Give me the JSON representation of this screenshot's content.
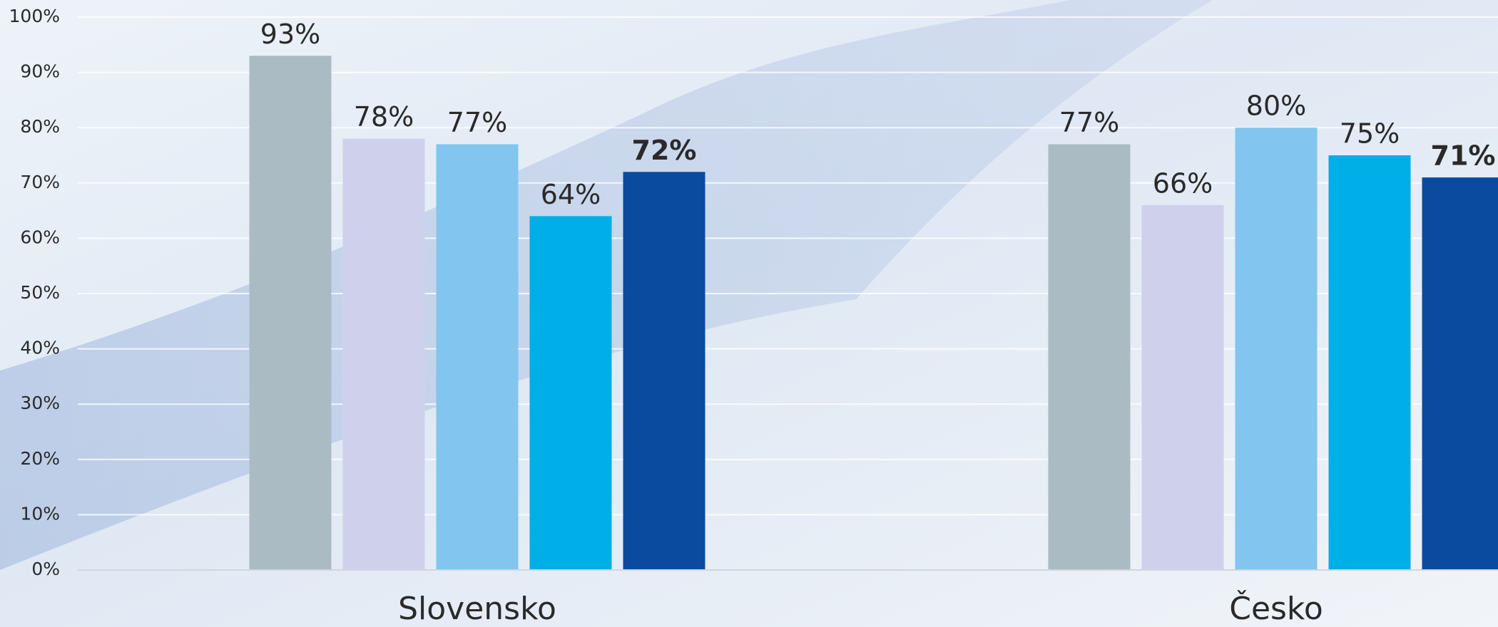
{
  "chart_data": {
    "type": "bar",
    "categories": [
      "Slovensko",
      "Česko"
    ],
    "series": [
      {
        "color": "#aabbc4",
        "values": [
          93,
          77
        ],
        "value_labels": [
          "93%",
          "77%"
        ]
      },
      {
        "color": "#cfd1ec",
        "values": [
          78,
          66
        ],
        "value_labels": [
          "78%",
          "66%"
        ]
      },
      {
        "color": "#82c5ee",
        "values": [
          77,
          80
        ],
        "value_labels": [
          "77%",
          "80%"
        ]
      },
      {
        "color": "#00aee8",
        "values": [
          64,
          75
        ],
        "value_labels": [
          "64%",
          "75%"
        ]
      },
      {
        "color": "#0a4ba0",
        "values": [
          72,
          71
        ],
        "value_labels": [
          "72%",
          "71%"
        ],
        "bold": true
      }
    ],
    "ylim": [
      0,
      100
    ],
    "yticks": [
      {
        "value": 0,
        "label": "0%"
      },
      {
        "value": 10,
        "label": "10%"
      },
      {
        "value": 20,
        "label": "20%"
      },
      {
        "value": 30,
        "label": "30%"
      },
      {
        "value": 40,
        "label": "40%"
      },
      {
        "value": 50,
        "label": "50%"
      },
      {
        "value": 60,
        "label": "60%"
      },
      {
        "value": 70,
        "label": "70%"
      },
      {
        "value": 80,
        "label": "80%"
      },
      {
        "value": 90,
        "label": "90%"
      },
      {
        "value": 100,
        "label": "100%"
      }
    ],
    "grid": true
  }
}
